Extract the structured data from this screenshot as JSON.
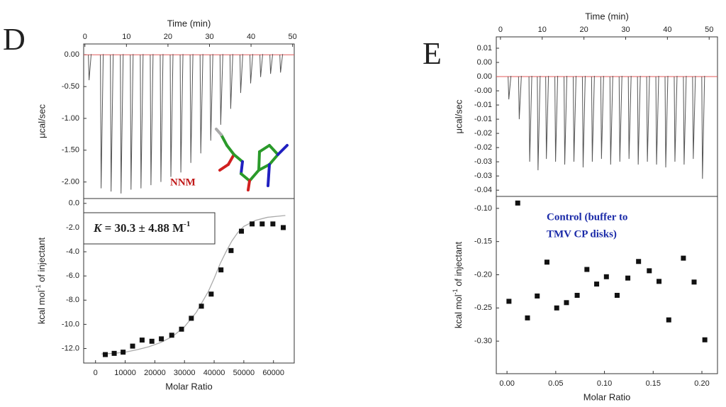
{
  "chart_data": [
    {
      "type": "spike",
      "panel": "D",
      "x_label": "Time (min)",
      "y_label": "μcal/sec",
      "annotation": "NNM",
      "xlim": [
        -0.3,
        50.4
      ],
      "xticks": [
        0,
        10,
        20,
        30,
        40,
        50
      ],
      "ylim": [
        -2.26,
        0.17
      ],
      "yticks": [
        {
          "value": 0,
          "label": "0.00"
        },
        {
          "value": -0.5,
          "label": "-0.50"
        },
        {
          "value": -1,
          "label": "-1.00"
        },
        {
          "value": -1.5,
          "label": "-1.50"
        },
        {
          "value": -2,
          "label": "-2.00"
        }
      ],
      "baseline": 0,
      "baseline_color": "#e05a5a",
      "color": "#555555",
      "x": [
        1,
        3.9,
        6.3,
        8.7,
        11.1,
        13.5,
        15.9,
        18.3,
        20.7,
        23.1,
        25.5,
        27.9,
        30.3,
        32.7,
        35.1,
        37.5,
        39.9,
        42.3,
        44.7,
        47.1
      ],
      "values": [
        -0.4,
        -2.1,
        -2.15,
        -2.18,
        -2.12,
        -2.1,
        -2.05,
        -2.0,
        -1.92,
        -1.85,
        -1.7,
        -1.55,
        -1.35,
        -1.1,
        -0.85,
        -0.6,
        -0.45,
        -0.35,
        -0.3,
        -0.28
      ]
    },
    {
      "type": "scatter",
      "x_label": "Molar Ratio",
      "y_label": {
        "pre": "kcal mol",
        "sup": "-1",
        "post": " of injectant"
      },
      "annotation": {
        "symbol": "K",
        "text": " = 30.3 ± 4.88 M",
        "sup": "-1"
      },
      "xlim": [
        -4000,
        67000
      ],
      "xticks": [
        0,
        10000,
        20000,
        30000,
        40000,
        50000,
        60000
      ],
      "ylim": [
        -13.2,
        0.4
      ],
      "yticks": [
        {
          "value": 0,
          "label": "0.0"
        },
        {
          "value": -2,
          "label": "-2.0"
        },
        {
          "value": -4,
          "label": "-4.0"
        },
        {
          "value": -6,
          "label": "-6.0"
        },
        {
          "value": -8,
          "label": "-8.0"
        },
        {
          "value": -10,
          "label": "-10.0"
        },
        {
          "value": -12,
          "label": "-12.0"
        }
      ],
      "color": "#111111",
      "fit_color": "#aaaaaa",
      "x": [
        3300,
        6300,
        9300,
        12500,
        15700,
        19000,
        22200,
        25700,
        29000,
        32300,
        35700,
        39000,
        42300,
        45700,
        49200,
        52800,
        56200,
        59800,
        63300
      ],
      "values": [
        -12.5,
        -12.4,
        -12.3,
        -11.8,
        -11.3,
        -11.4,
        -11.2,
        -10.9,
        -10.4,
        -9.5,
        -8.5,
        -7.5,
        -5.5,
        -3.9,
        -2.3,
        -1.7,
        -1.7,
        -1.7,
        -2.0
      ],
      "fit": {
        "x": [
          2000,
          6000,
          10000,
          14000,
          18000,
          22000,
          26000,
          30000,
          34000,
          38000,
          40000,
          42000,
          44000,
          46000,
          48000,
          50000,
          54000,
          58000,
          62000,
          64000
        ],
        "values": [
          -12.45,
          -12.4,
          -12.3,
          -12.1,
          -11.85,
          -11.5,
          -11.0,
          -10.2,
          -9.0,
          -7.3,
          -6.2,
          -5.0,
          -4.0,
          -3.1,
          -2.4,
          -1.9,
          -1.4,
          -1.15,
          -1.05,
          -1.0
        ]
      }
    },
    {
      "type": "spike",
      "panel": "E",
      "x_label": "Time (min)",
      "y_label": "μcal/sec",
      "xlim": [
        -1,
        52
      ],
      "xticks": [
        0,
        10,
        20,
        30,
        40,
        50
      ],
      "ylim": [
        -0.0422,
        0.014
      ],
      "yticks": [
        {
          "value": 0.01,
          "label": "0.01"
        },
        {
          "value": 0.005,
          "label": "0.00"
        },
        {
          "value": 0,
          "label": "0.00"
        },
        {
          "value": -0.005,
          "label": "-0.00"
        },
        {
          "value": -0.01,
          "label": "-0.01"
        },
        {
          "value": -0.015,
          "label": "-0.01"
        },
        {
          "value": -0.02,
          "label": "-0.02"
        },
        {
          "value": -0.025,
          "label": "-0.02"
        },
        {
          "value": -0.03,
          "label": "-0.03"
        },
        {
          "value": -0.035,
          "label": "-0.03"
        },
        {
          "value": -0.04,
          "label": "-0.04"
        }
      ],
      "baseline": 0,
      "baseline_color": "#e05a5a",
      "color": "#555555",
      "x": [
        2,
        4.5,
        7,
        9,
        11,
        13.2,
        15.4,
        17.6,
        19.8,
        22,
        24.2,
        26.4,
        28.6,
        30.8,
        33,
        35.2,
        37.4,
        39.6,
        41.8,
        44,
        46.2,
        48.4
      ],
      "values": [
        -0.008,
        -0.015,
        -0.03,
        -0.033,
        -0.029,
        -0.03,
        -0.031,
        -0.03,
        -0.032,
        -0.03,
        -0.029,
        -0.031,
        -0.03,
        -0.029,
        -0.031,
        -0.03,
        -0.031,
        -0.032,
        -0.03,
        -0.031,
        -0.029,
        -0.036
      ]
    },
    {
      "type": "scatter",
      "x_label": "Molar Ratio",
      "y_label": {
        "pre": "kcal mol",
        "sup": "-1",
        "post": " of injectant"
      },
      "annotation_lines": [
        "Control  (buffer to",
        "TMV CP disks)"
      ],
      "annotation_color": "#1a2aa8",
      "xlim": [
        -0.011,
        0.216
      ],
      "xticks": [
        {
          "value": 0,
          "label": "0.00"
        },
        0.05,
        {
          "value": 0.1,
          "label": "0.10"
        },
        0.15,
        {
          "value": 0.2,
          "label": "0.20"
        }
      ],
      "ylim": [
        -0.349,
        -0.082
      ],
      "yticks": [
        {
          "value": -0.1,
          "label": "-0.10"
        },
        {
          "value": -0.15,
          "label": "-0.15"
        },
        {
          "value": -0.2,
          "label": "-0.20"
        },
        {
          "value": -0.25,
          "label": "-0.25"
        },
        {
          "value": -0.3,
          "label": "-0.30"
        }
      ],
      "color": "#111111",
      "x": [
        0.002,
        0.011,
        0.021,
        0.031,
        0.041,
        0.051,
        0.061,
        0.072,
        0.082,
        0.092,
        0.102,
        0.113,
        0.124,
        0.135,
        0.146,
        0.156,
        0.166,
        0.181,
        0.192,
        0.203
      ],
      "values": [
        -0.24,
        -0.092,
        -0.265,
        -0.232,
        -0.181,
        -0.25,
        -0.242,
        -0.231,
        -0.192,
        -0.214,
        -0.203,
        -0.231,
        -0.205,
        -0.18,
        -0.194,
        -0.21,
        -0.268,
        -0.175,
        -0.211,
        -0.298
      ]
    }
  ]
}
